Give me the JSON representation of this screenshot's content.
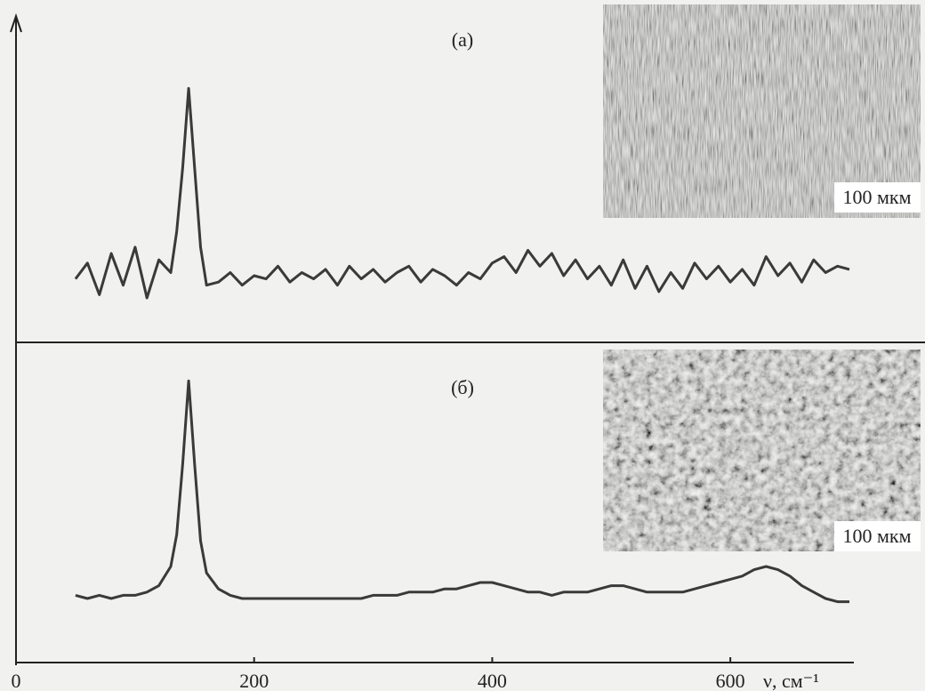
{
  "chart_data": [
    {
      "type": "line",
      "label": "(а)",
      "inset_label": "100 мкм",
      "color": "#3a3a3a",
      "xlim": [
        0,
        700
      ],
      "ylim": [
        0,
        100
      ],
      "x": [
        50,
        60,
        70,
        80,
        90,
        100,
        110,
        120,
        130,
        135,
        140,
        145,
        150,
        155,
        160,
        170,
        180,
        190,
        200,
        210,
        220,
        230,
        240,
        250,
        260,
        270,
        280,
        290,
        300,
        310,
        320,
        330,
        340,
        350,
        360,
        370,
        380,
        390,
        400,
        410,
        420,
        430,
        440,
        450,
        460,
        470,
        480,
        490,
        500,
        510,
        520,
        530,
        540,
        550,
        560,
        570,
        580,
        590,
        600,
        610,
        620,
        630,
        640,
        650,
        660,
        670,
        680,
        690,
        700
      ],
      "values": [
        20,
        25,
        15,
        28,
        18,
        30,
        14,
        26,
        22,
        35,
        55,
        80,
        55,
        30,
        18,
        19,
        22,
        18,
        21,
        20,
        24,
        19,
        22,
        20,
        23,
        18,
        24,
        20,
        23,
        19,
        22,
        24,
        19,
        23,
        21,
        18,
        22,
        20,
        25,
        27,
        22,
        29,
        24,
        28,
        21,
        26,
        20,
        24,
        18,
        26,
        17,
        24,
        16,
        22,
        17,
        25,
        20,
        24,
        19,
        23,
        18,
        27,
        21,
        25,
        19,
        26,
        22,
        24,
        23
      ]
    },
    {
      "type": "line",
      "label": "(б)",
      "inset_label": "100 мкм",
      "color": "#3a3a3a",
      "xlim": [
        0,
        700
      ],
      "ylim": [
        0,
        100
      ],
      "xticks": [
        0,
        200,
        400,
        600
      ],
      "xlabel": "ν, см⁻¹",
      "x": [
        50,
        60,
        70,
        80,
        90,
        100,
        110,
        120,
        130,
        135,
        140,
        145,
        150,
        155,
        160,
        170,
        180,
        190,
        200,
        210,
        220,
        230,
        240,
        250,
        260,
        270,
        280,
        290,
        300,
        310,
        320,
        330,
        340,
        350,
        360,
        370,
        380,
        390,
        400,
        410,
        420,
        430,
        440,
        450,
        460,
        470,
        480,
        490,
        500,
        510,
        520,
        530,
        540,
        550,
        560,
        570,
        580,
        590,
        600,
        610,
        620,
        630,
        640,
        650,
        660,
        670,
        680,
        690,
        700
      ],
      "values": [
        21,
        20,
        21,
        20,
        21,
        21,
        22,
        24,
        30,
        40,
        62,
        88,
        62,
        38,
        28,
        23,
        21,
        20,
        20,
        20,
        20,
        20,
        20,
        20,
        20,
        20,
        20,
        20,
        21,
        21,
        21,
        22,
        22,
        22,
        23,
        23,
        24,
        25,
        25,
        24,
        23,
        22,
        22,
        21,
        22,
        22,
        22,
        23,
        24,
        24,
        23,
        22,
        22,
        22,
        22,
        23,
        24,
        25,
        26,
        27,
        29,
        30,
        29,
        27,
        24,
        22,
        20,
        19,
        19
      ]
    }
  ]
}
